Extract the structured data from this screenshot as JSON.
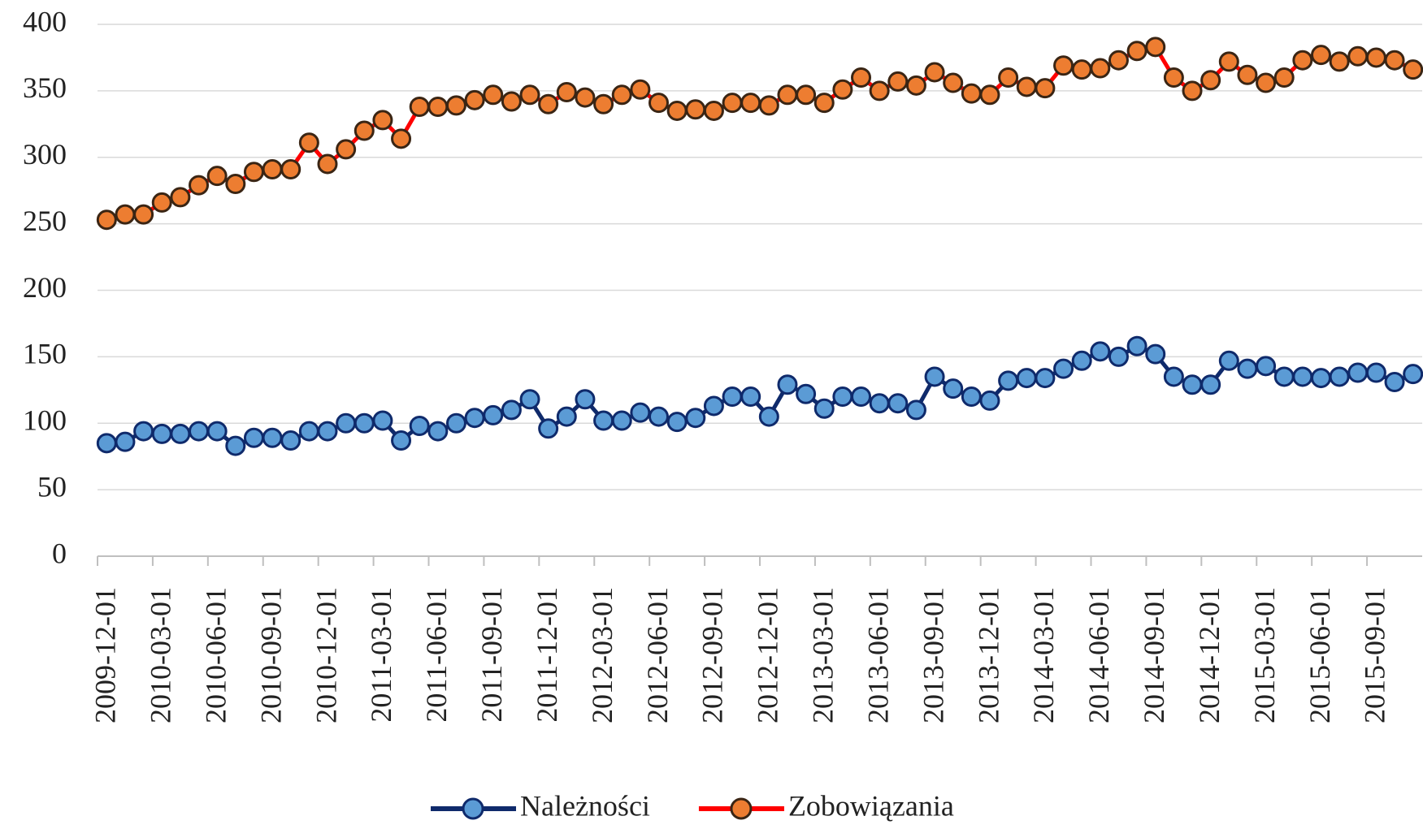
{
  "chart_data": {
    "type": "line",
    "categories": [
      "2009-12-01",
      null,
      null,
      "2010-03-01",
      null,
      null,
      "2010-06-01",
      null,
      null,
      "2010-09-01",
      null,
      null,
      "2010-12-01",
      null,
      null,
      "2011-03-01",
      null,
      null,
      "2011-06-01",
      null,
      null,
      "2011-09-01",
      null,
      null,
      "2011-12-01",
      null,
      null,
      "2012-03-01",
      null,
      null,
      "2012-06-01",
      null,
      null,
      "2012-09-01",
      null,
      null,
      "2012-12-01",
      null,
      null,
      "2013-03-01",
      null,
      null,
      "2013-06-01",
      null,
      null,
      "2013-09-01",
      null,
      null,
      "2013-12-01",
      null,
      null,
      "2014-03-01",
      null,
      null,
      "2014-06-01",
      null,
      null,
      "2014-09-01",
      null,
      null,
      "2014-12-01",
      null,
      null,
      "2015-03-01",
      null,
      null,
      "2015-06-01",
      null,
      null,
      "2015-09-01",
      null,
      null
    ],
    "series": [
      {
        "name": "Należności",
        "color": "#0f2a6b",
        "marker_color": "#5b9bd5",
        "values": [
          85,
          86,
          94,
          92,
          92,
          94,
          94,
          83,
          89,
          89,
          87,
          94,
          94,
          100,
          100,
          102,
          87,
          98,
          94,
          100,
          104,
          106,
          110,
          118,
          96,
          105,
          118,
          102,
          102,
          108,
          105,
          101,
          104,
          113,
          120,
          120,
          105,
          129,
          122,
          111,
          120,
          120,
          115,
          115,
          110,
          135,
          126,
          120,
          117,
          132,
          134,
          134,
          141,
          147,
          154,
          150,
          158,
          152,
          135,
          129,
          129,
          147,
          141,
          143,
          135,
          135,
          134,
          135,
          138,
          138,
          131,
          137
        ]
      },
      {
        "name": "Zobowiązania",
        "color": "#ff0000",
        "marker_color": "#ed7d31",
        "values": [
          253,
          257,
          257,
          266,
          270,
          279,
          286,
          280,
          289,
          291,
          291,
          311,
          295,
          306,
          320,
          328,
          314,
          338,
          338,
          339,
          343,
          347,
          342,
          347,
          340,
          349,
          345,
          340,
          347,
          351,
          341,
          335,
          336,
          335,
          341,
          341,
          339,
          347,
          347,
          341,
          351,
          360,
          350,
          357,
          354,
          364,
          356,
          348,
          347,
          360,
          353,
          352,
          369,
          366,
          367,
          373,
          380,
          383,
          360,
          350,
          358,
          372,
          362,
          356,
          360,
          373,
          377,
          372,
          376,
          375,
          373,
          366
        ]
      }
    ],
    "ylim": [
      0,
      400
    ],
    "yticks": [
      0,
      50,
      100,
      150,
      200,
      250,
      300,
      350,
      400
    ],
    "grid": true,
    "legend": "bottom"
  }
}
